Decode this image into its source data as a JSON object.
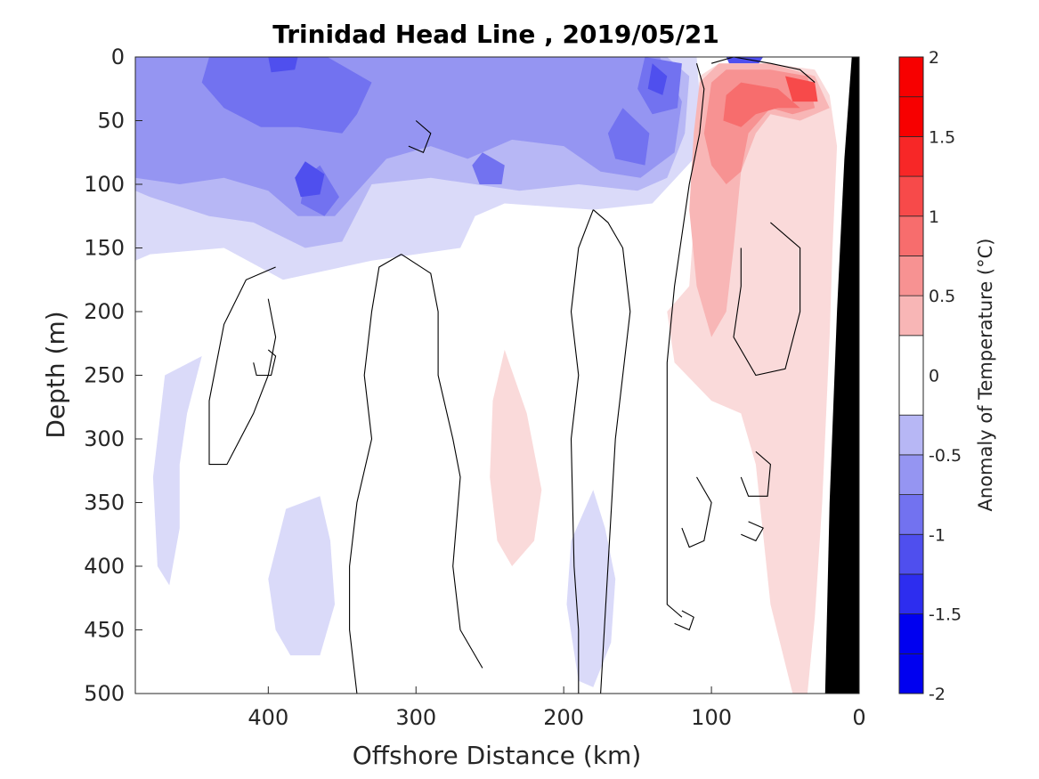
{
  "chart_data": {
    "type": "heatmap",
    "subtype": "filled-contour section",
    "title": "Trinidad Head Line , 2019/05/21",
    "xlabel": "Offshore Distance (km)",
    "ylabel": "Depth (m)",
    "colorbar_label": "Anomaly of Temperature (°C)",
    "xlim": [
      490,
      0
    ],
    "ylim": [
      500,
      0
    ],
    "x_reversed": true,
    "y_reversed": true,
    "xticks": [
      400,
      300,
      200,
      100,
      0
    ],
    "yticks": [
      0,
      50,
      100,
      150,
      200,
      250,
      300,
      350,
      400,
      450,
      500
    ],
    "colorbar_range": [
      -2,
      2
    ],
    "colorbar_ticks": [
      2,
      1.5,
      1,
      0.5,
      0,
      -0.5,
      -1,
      -1.5,
      -2
    ],
    "colorbar_tick_labels": [
      "2",
      "1.5",
      "1",
      "0.5",
      "0",
      "-0.5",
      "-1",
      "-1.5",
      "-2"
    ],
    "levels": [
      -2,
      -1.75,
      -1.5,
      -1.25,
      -1,
      -0.75,
      -0.5,
      -0.25,
      0.25,
      0.5,
      0.75,
      1,
      1.25,
      1.5,
      1.75,
      2
    ],
    "level_colors": {
      "neutral": "#ffffff",
      "cold": [
        "#dadaf9",
        "#b7b7f5",
        "#9595f2",
        "#7272f0",
        "#4f4fee",
        "#2d2def",
        "#0000f0"
      ],
      "warm": [
        "#fadada",
        "#f8b6b6",
        "#f79292",
        "#f76d6d",
        "#f74a4a",
        "#f72727",
        "#f70000"
      ]
    },
    "bathymetry_color": "#000000",
    "zero_contour_color": "#000000",
    "grid": false,
    "colorbar_position": "right",
    "bathymetry": [
      [
        5,
        0
      ],
      [
        10,
        80
      ],
      [
        15,
        200
      ],
      [
        20,
        350
      ],
      [
        23,
        500
      ]
    ],
    "anomaly_regions": [
      {
        "level": -0.25,
        "poly": [
          [
            490,
            0
          ],
          [
            340,
            0
          ],
          [
            270,
            0
          ],
          [
            190,
            0
          ],
          [
            110,
            0
          ],
          [
            108,
            30
          ],
          [
            112,
            80
          ],
          [
            140,
            115
          ],
          [
            180,
            120
          ],
          [
            240,
            115
          ],
          [
            260,
            125
          ],
          [
            270,
            150
          ],
          [
            330,
            160
          ],
          [
            390,
            175
          ],
          [
            430,
            150
          ],
          [
            480,
            155
          ],
          [
            490,
            160
          ]
        ]
      },
      {
        "level": -0.5,
        "poly": [
          [
            490,
            0
          ],
          [
            440,
            0
          ],
          [
            380,
            0
          ],
          [
            300,
            0
          ],
          [
            250,
            0
          ],
          [
            200,
            0
          ],
          [
            130,
            0
          ],
          [
            115,
            15
          ],
          [
            118,
            60
          ],
          [
            130,
            95
          ],
          [
            150,
            105
          ],
          [
            190,
            100
          ],
          [
            230,
            105
          ],
          [
            260,
            100
          ],
          [
            290,
            95
          ],
          [
            330,
            100
          ],
          [
            350,
            145
          ],
          [
            375,
            150
          ],
          [
            410,
            130
          ],
          [
            440,
            125
          ],
          [
            480,
            110
          ],
          [
            490,
            105
          ]
        ]
      },
      {
        "level": -0.75,
        "poly": [
          [
            490,
            0
          ],
          [
            430,
            0
          ],
          [
            370,
            0
          ],
          [
            320,
            0
          ],
          [
            280,
            0
          ],
          [
            240,
            0
          ],
          [
            200,
            0
          ],
          [
            135,
            0
          ],
          [
            120,
            35
          ],
          [
            125,
            75
          ],
          [
            148,
            95
          ],
          [
            175,
            90
          ],
          [
            200,
            70
          ],
          [
            235,
            65
          ],
          [
            265,
            80
          ],
          [
            290,
            70
          ],
          [
            320,
            80
          ],
          [
            355,
            125
          ],
          [
            380,
            125
          ],
          [
            400,
            105
          ],
          [
            430,
            95
          ],
          [
            460,
            100
          ],
          [
            490,
            95
          ]
        ]
      },
      {
        "level": -1.0,
        "poly": [
          [
            440,
            0
          ],
          [
            360,
            0
          ],
          [
            330,
            20
          ],
          [
            340,
            45
          ],
          [
            350,
            60
          ],
          [
            380,
            55
          ],
          [
            405,
            55
          ],
          [
            430,
            40
          ],
          [
            445,
            20
          ]
        ]
      },
      {
        "level": -1.0,
        "poly": [
          [
            365,
            85
          ],
          [
            352,
            110
          ],
          [
            362,
            125
          ],
          [
            378,
            115
          ],
          [
            375,
            95
          ]
        ]
      },
      {
        "level": -1.0,
        "poly": [
          [
            160,
            40
          ],
          [
            142,
            60
          ],
          [
            145,
            85
          ],
          [
            165,
            80
          ],
          [
            170,
            60
          ]
        ]
      },
      {
        "level": -1.0,
        "poly": [
          [
            145,
            0
          ],
          [
            120,
            5
          ],
          [
            123,
            40
          ],
          [
            140,
            45
          ],
          [
            150,
            25
          ]
        ]
      },
      {
        "level": -1.0,
        "poly": [
          [
            255,
            75
          ],
          [
            240,
            85
          ],
          [
            242,
            100
          ],
          [
            257,
            100
          ],
          [
            262,
            85
          ]
        ]
      },
      {
        "level": -1.25,
        "poly": [
          [
            375,
            82
          ],
          [
            362,
            92
          ],
          [
            365,
            108
          ],
          [
            378,
            110
          ],
          [
            382,
            95
          ]
        ]
      },
      {
        "level": -1.25,
        "poly": [
          [
            400,
            0
          ],
          [
            380,
            0
          ],
          [
            382,
            10
          ],
          [
            398,
            12
          ]
        ]
      },
      {
        "level": -1.25,
        "poly": [
          [
            140,
            5
          ],
          [
            130,
            15
          ],
          [
            133,
            30
          ],
          [
            143,
            25
          ]
        ]
      },
      {
        "level": -1.25,
        "poly": [
          [
            90,
            0
          ],
          [
            65,
            0
          ],
          [
            68,
            5
          ],
          [
            88,
            5
          ]
        ]
      },
      {
        "level": -0.25,
        "poly": [
          [
            445,
            235
          ],
          [
            470,
            250
          ],
          [
            478,
            330
          ],
          [
            475,
            400
          ],
          [
            467,
            415
          ],
          [
            460,
            370
          ],
          [
            460,
            320
          ],
          [
            455,
            280
          ]
        ]
      },
      {
        "level": -0.25,
        "poly": [
          [
            365,
            345
          ],
          [
            388,
            355
          ],
          [
            400,
            410
          ],
          [
            395,
            450
          ],
          [
            385,
            470
          ],
          [
            365,
            470
          ],
          [
            355,
            430
          ],
          [
            358,
            380
          ]
        ]
      },
      {
        "level": -0.25,
        "poly": [
          [
            180,
            340
          ],
          [
            195,
            380
          ],
          [
            198,
            430
          ],
          [
            190,
            490
          ],
          [
            180,
            495
          ],
          [
            168,
            460
          ],
          [
            165,
            410
          ],
          [
            172,
            370
          ]
        ]
      },
      {
        "level": 0.25,
        "poly": [
          [
            108,
            15
          ],
          [
            95,
            5
          ],
          [
            60,
            5
          ],
          [
            30,
            10
          ],
          [
            20,
            30
          ],
          [
            15,
            70
          ],
          [
            18,
            150
          ],
          [
            20,
            220
          ],
          [
            25,
            350
          ],
          [
            30,
            440
          ],
          [
            35,
            500
          ],
          [
            45,
            500
          ],
          [
            60,
            430
          ],
          [
            70,
            320
          ],
          [
            80,
            280
          ],
          [
            100,
            270
          ],
          [
            125,
            240
          ],
          [
            130,
            200
          ],
          [
            115,
            180
          ],
          [
            110,
            100
          ]
        ]
      },
      {
        "level": 0.25,
        "poly": [
          [
            240,
            230
          ],
          [
            225,
            280
          ],
          [
            215,
            340
          ],
          [
            220,
            380
          ],
          [
            235,
            400
          ],
          [
            245,
            380
          ],
          [
            250,
            330
          ],
          [
            248,
            270
          ]
        ]
      },
      {
        "level": 0.5,
        "poly": [
          [
            108,
            20
          ],
          [
            95,
            5
          ],
          [
            60,
            5
          ],
          [
            30,
            15
          ],
          [
            20,
            40
          ],
          [
            40,
            50
          ],
          [
            60,
            45
          ],
          [
            70,
            60
          ],
          [
            80,
            90
          ],
          [
            85,
            150
          ],
          [
            90,
            200
          ],
          [
            100,
            220
          ],
          [
            110,
            180
          ],
          [
            115,
            120
          ],
          [
            112,
            60
          ]
        ]
      },
      {
        "level": 0.75,
        "poly": [
          [
            100,
            20
          ],
          [
            90,
            10
          ],
          [
            60,
            10
          ],
          [
            35,
            15
          ],
          [
            30,
            40
          ],
          [
            45,
            45
          ],
          [
            60,
            40
          ],
          [
            75,
            60
          ],
          [
            80,
            90
          ],
          [
            90,
            100
          ],
          [
            100,
            85
          ],
          [
            105,
            60
          ]
        ]
      },
      {
        "level": 1.0,
        "poly": [
          [
            90,
            30
          ],
          [
            80,
            20
          ],
          [
            55,
            25
          ],
          [
            40,
            40
          ],
          [
            55,
            40
          ],
          [
            70,
            45
          ],
          [
            80,
            55
          ],
          [
            92,
            50
          ]
        ]
      },
      {
        "level": 1.25,
        "poly": [
          [
            50,
            15
          ],
          [
            30,
            20
          ],
          [
            28,
            35
          ],
          [
            45,
            35
          ]
        ]
      }
    ],
    "zero_contours": [
      [
        [
          110,
          5
        ],
        [
          105,
          25
        ],
        [
          108,
          60
        ],
        [
          115,
          100
        ],
        [
          120,
          140
        ],
        [
          125,
          180
        ],
        [
          130,
          240
        ],
        [
          130,
          300
        ],
        [
          130,
          400
        ],
        [
          130,
          430
        ],
        [
          120,
          440
        ]
      ],
      [
        [
          100,
          5
        ],
        [
          85,
          0
        ],
        [
          60,
          5
        ],
        [
          40,
          10
        ],
        [
          30,
          20
        ]
      ],
      [
        [
          180,
          120
        ],
        [
          190,
          150
        ],
        [
          195,
          200
        ],
        [
          190,
          250
        ],
        [
          195,
          300
        ],
        [
          193,
          400
        ],
        [
          190,
          450
        ],
        [
          190,
          500
        ]
      ],
      [
        [
          180,
          120
        ],
        [
          170,
          130
        ],
        [
          160,
          150
        ],
        [
          155,
          200
        ],
        [
          160,
          250
        ],
        [
          165,
          300
        ],
        [
          170,
          400
        ],
        [
          175,
          500
        ]
      ],
      [
        [
          310,
          155
        ],
        [
          290,
          170
        ],
        [
          285,
          200
        ],
        [
          285,
          250
        ],
        [
          275,
          300
        ],
        [
          270,
          330
        ],
        [
          275,
          400
        ],
        [
          270,
          450
        ],
        [
          255,
          480
        ]
      ],
      [
        [
          310,
          155
        ],
        [
          325,
          165
        ],
        [
          330,
          200
        ],
        [
          335,
          250
        ],
        [
          330,
          300
        ],
        [
          340,
          350
        ],
        [
          345,
          400
        ],
        [
          345,
          450
        ],
        [
          340,
          500
        ]
      ],
      [
        [
          395,
          165
        ],
        [
          415,
          175
        ],
        [
          430,
          210
        ],
        [
          440,
          270
        ],
        [
          440,
          320
        ],
        [
          428,
          320
        ],
        [
          410,
          280
        ],
        [
          400,
          250
        ],
        [
          395,
          220
        ],
        [
          400,
          190
        ]
      ],
      [
        [
          300,
          50
        ],
        [
          290,
          60
        ],
        [
          295,
          75
        ],
        [
          305,
          70
        ]
      ],
      [
        [
          70,
          310
        ],
        [
          60,
          320
        ],
        [
          62,
          345
        ],
        [
          75,
          345
        ],
        [
          80,
          330
        ]
      ],
      [
        [
          110,
          330
        ],
        [
          100,
          350
        ],
        [
          105,
          380
        ],
        [
          115,
          385
        ],
        [
          120,
          370
        ]
      ],
      [
        [
          60,
          130
        ],
        [
          40,
          150
        ],
        [
          40,
          200
        ],
        [
          50,
          245
        ],
        [
          70,
          250
        ],
        [
          85,
          220
        ],
        [
          80,
          180
        ],
        [
          80,
          150
        ]
      ],
      [
        [
          75,
          365
        ],
        [
          65,
          370
        ],
        [
          70,
          380
        ],
        [
          80,
          375
        ]
      ],
      [
        [
          120,
          435
        ],
        [
          112,
          440
        ],
        [
          115,
          450
        ],
        [
          125,
          445
        ]
      ],
      [
        [
          400,
          230
        ],
        [
          395,
          235
        ],
        [
          398,
          250
        ],
        [
          408,
          250
        ],
        [
          410,
          240
        ]
      ]
    ]
  }
}
